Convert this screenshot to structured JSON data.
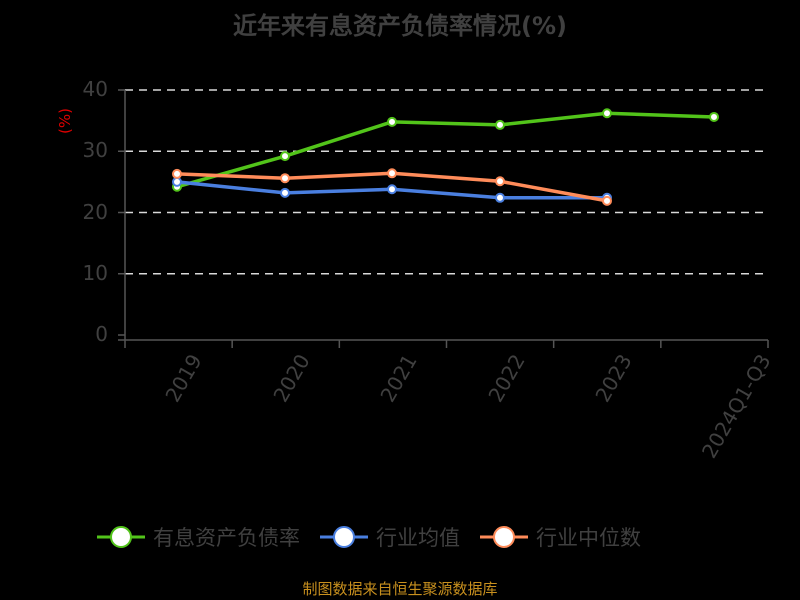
{
  "title": "近年来有息资产负债率情况(%)",
  "source": "制图数据来自恒生聚源数据库",
  "chart_data": {
    "type": "line",
    "title": "近年来有息资产负债率情况(%)",
    "xlabel": "",
    "ylabel": "(%)",
    "ylim": [
      0,
      40
    ],
    "yticks": [
      "0",
      "10",
      "20",
      "30",
      "40"
    ],
    "grid": true,
    "legend_position": "bottom",
    "categories": [
      "2019",
      "2020",
      "2021",
      "2022",
      "2023",
      "2024Q1-Q3"
    ],
    "series": [
      {
        "name": "有息资产负债率",
        "color": "#52c41a",
        "values": [
          24.2,
          29.2,
          34.8,
          34.3,
          36.2,
          35.6
        ]
      },
      {
        "name": "行业均值",
        "color": "#4a7fe0",
        "values": [
          25.0,
          23.2,
          23.8,
          22.4,
          22.4,
          null
        ]
      },
      {
        "name": "行业中位数",
        "color": "#ff8c5a",
        "values": [
          26.3,
          25.6,
          26.4,
          25.1,
          21.9,
          null
        ]
      }
    ]
  },
  "legend": [
    {
      "label": "有息资产负债率",
      "color": "#52c41a"
    },
    {
      "label": "行业均值",
      "color": "#4a7fe0"
    },
    {
      "label": "行业中位数",
      "color": "#ff8c5a"
    }
  ]
}
